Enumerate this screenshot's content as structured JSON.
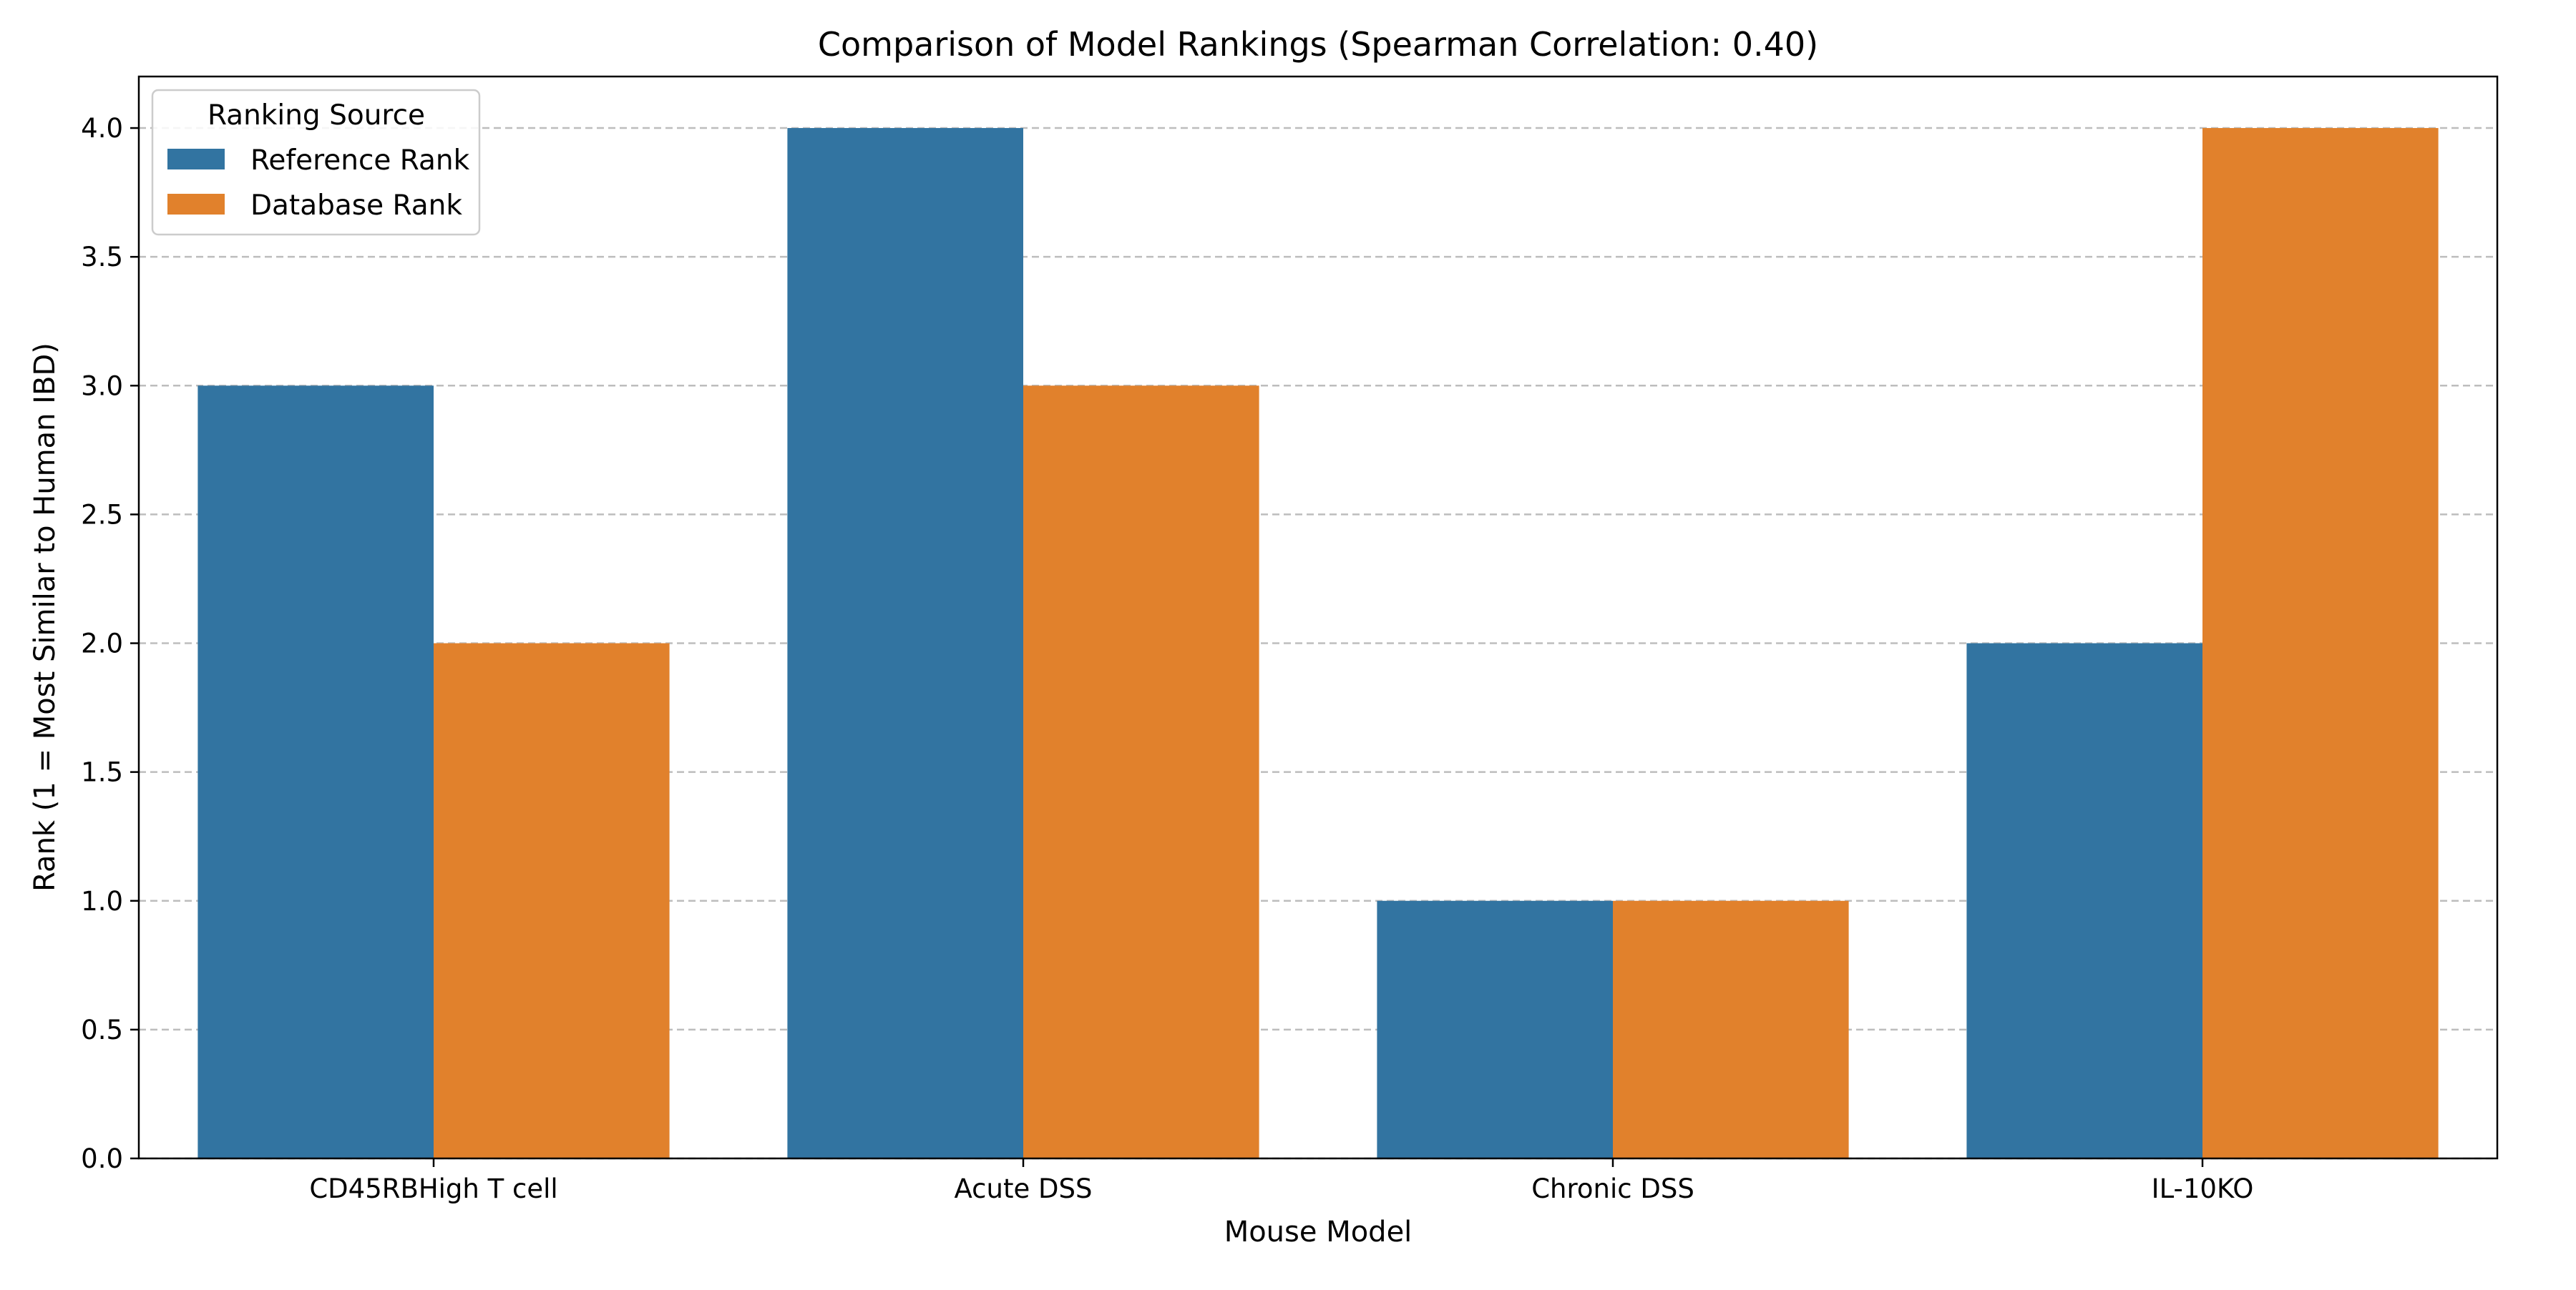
{
  "chart_data": {
    "type": "bar",
    "title": "Comparison of Model Rankings (Spearman Correlation: 0.40)",
    "xlabel": "Mouse Model",
    "ylabel": "Rank (1 = Most Similar to Human IBD)",
    "categories": [
      "CD45RBHigh T cell",
      "Acute DSS",
      "Chronic DSS",
      "IL-10KO"
    ],
    "series": [
      {
        "name": "Reference Rank",
        "values": [
          3,
          4,
          1,
          2
        ],
        "color": "#3274a1"
      },
      {
        "name": "Database Rank",
        "values": [
          2,
          3,
          1,
          4
        ],
        "color": "#e1812c"
      }
    ],
    "ylim": [
      0,
      4.2
    ],
    "yticks": [
      "0.0",
      "0.5",
      "1.0",
      "1.5",
      "2.0",
      "2.5",
      "3.0",
      "3.5",
      "4.0"
    ],
    "ytick_values": [
      0,
      0.5,
      1,
      1.5,
      2,
      2.5,
      3,
      3.5,
      4
    ],
    "grid": "y-dashed",
    "legend": {
      "title": "Ranking Source",
      "placement": "top-left"
    }
  }
}
